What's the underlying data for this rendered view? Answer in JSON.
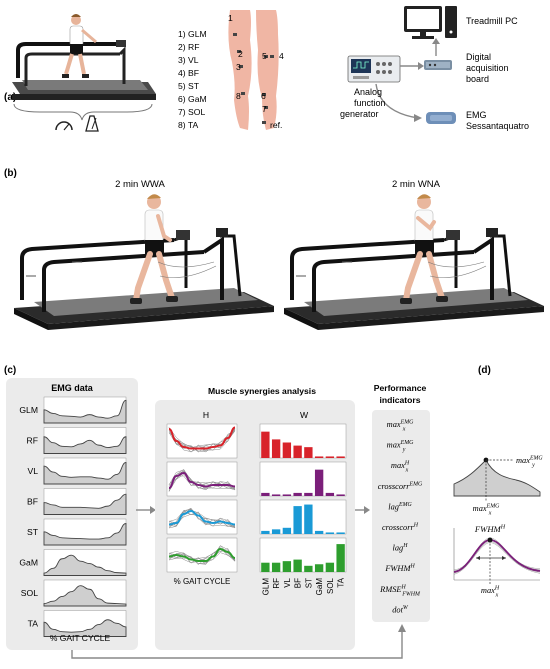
{
  "panels": {
    "a": {
      "label": "(a)",
      "muscle_list": [
        "1) GLM",
        "2) RF",
        "3) VL",
        "4) BF",
        "5) ST",
        "6) GaM",
        "7) SOL",
        "8) TA"
      ],
      "leg_markers": [
        "1",
        "2",
        "3",
        "4",
        "5",
        "6",
        "7",
        "8",
        "ref."
      ],
      "devices": {
        "treadmill_pc": "Treadmill PC",
        "daq_line1": "Digital",
        "daq_line2": "acquisition",
        "daq_line3": "board",
        "afg_line1": "Analog",
        "afg_line2": "function",
        "afg_line3": "generator",
        "emg_line1": "EMG",
        "emg_line2": "Sessantaquatro"
      }
    },
    "b": {
      "label": "(b)",
      "left_title": "2 min WWA",
      "right_title": "2 min WNA"
    },
    "c": {
      "label": "(c)",
      "emg_title": "EMG data",
      "emg_muscles": [
        "GLM",
        "RF",
        "VL",
        "BF",
        "ST",
        "GaM",
        "SOL",
        "TA"
      ],
      "emg_xlabel": "% GAIT CYCLE",
      "synergy_title": "Muscle synergies analysis",
      "h_title": "H",
      "w_title": "W",
      "h_xlabel": "% GAIT CYCLE",
      "w_xlabels": [
        "GLM",
        "RF",
        "VL",
        "BF",
        "ST",
        "GaM",
        "SOL",
        "TA"
      ],
      "perf_title_line1": "Performance",
      "perf_title_line2": "indicators",
      "indicators": [
        {
          "base": "max",
          "sub": "x",
          "sup": "EMG"
        },
        {
          "base": "max",
          "sub": "y",
          "sup": "EMG"
        },
        {
          "base": "max",
          "sub": "x",
          "sup": "H"
        },
        {
          "base": "crosscorr",
          "sub": "",
          "sup": "EMG"
        },
        {
          "base": "lag",
          "sub": "",
          "sup": "EMG"
        },
        {
          "base": "crosscorr",
          "sub": "",
          "sup": "H"
        },
        {
          "base": "lag",
          "sub": "",
          "sup": "H"
        },
        {
          "base": "FWHM",
          "sub": "",
          "sup": "H"
        },
        {
          "base": "RMSE",
          "sub": "FWHM",
          "sup": "H"
        },
        {
          "base": "dot",
          "sub": "",
          "sup": "W"
        }
      ],
      "synergy_colors": [
        "#d8232a",
        "#7b1f7a",
        "#1a9ad6",
        "#2e9e2e"
      ]
    },
    "d": {
      "label": "(d)",
      "emg_maxy": {
        "base": "max",
        "sub": "y",
        "sup": "EMG"
      },
      "emg_maxx": {
        "base": "max",
        "sub": "x",
        "sup": "EMG"
      },
      "fwhm": {
        "base": "FWHM",
        "sub": "",
        "sup": "H"
      },
      "h_maxx": {
        "base": "max",
        "sub": "x",
        "sup": "H"
      }
    }
  }
}
